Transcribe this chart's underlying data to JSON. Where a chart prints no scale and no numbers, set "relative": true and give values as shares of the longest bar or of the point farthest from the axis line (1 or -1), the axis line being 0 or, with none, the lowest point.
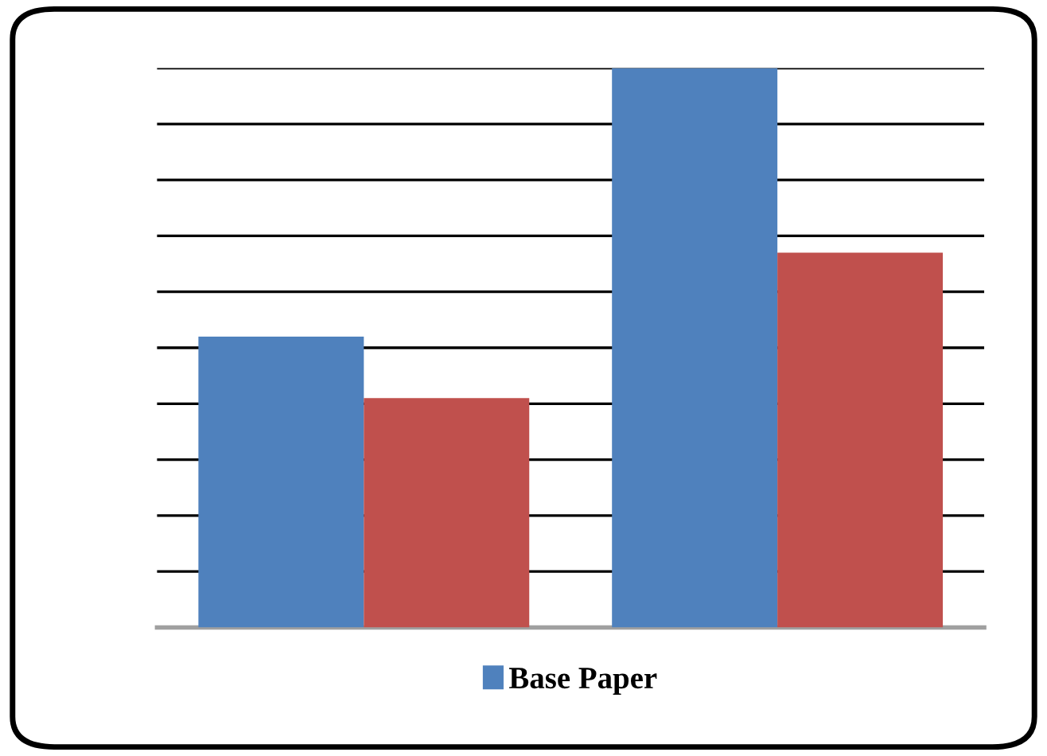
{
  "chart_data": {
    "type": "bar",
    "relative": true,
    "categories": [
      null,
      null
    ],
    "series": [
      {
        "name": "Base Paper",
        "color": "#4f81bd",
        "values": [
          0.52,
          1
        ]
      },
      {
        "color": "#c0504d",
        "values": [
          0.41,
          0.67
        ]
      }
    ],
    "grid": "y",
    "legend": "bottom"
  }
}
